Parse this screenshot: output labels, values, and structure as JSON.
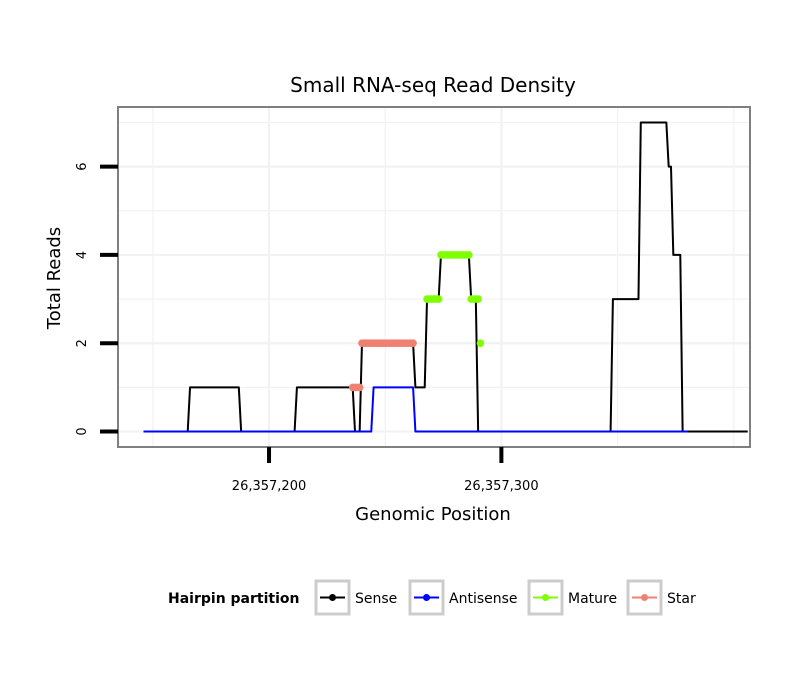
{
  "chart_data": {
    "type": "line",
    "title": "Small RNA-seq Read Density",
    "xlabel": "Genomic Position",
    "ylabel": "Total Reads",
    "xlim": [
      26357135,
      26357407
    ],
    "ylim": [
      -0.35,
      7.35
    ],
    "x_ticks": [
      {
        "value": 26357200,
        "label": "26,357,200"
      },
      {
        "value": 26357300,
        "label": "26,357,300"
      }
    ],
    "y_ticks": [
      {
        "value": 0,
        "label": "0"
      },
      {
        "value": 2,
        "label": "2"
      },
      {
        "value": 4,
        "label": "4"
      },
      {
        "value": 6,
        "label": "6"
      }
    ],
    "grid": true,
    "legend": {
      "title": "Hairpin partition",
      "position": "bottom",
      "entries": [
        {
          "name": "Sense",
          "color": "#000000"
        },
        {
          "name": "Antisense",
          "color": "#0000FF"
        },
        {
          "name": "Mature",
          "color": "#7FFF00"
        },
        {
          "name": "Star",
          "color": "#F08070"
        }
      ]
    },
    "series": [
      {
        "name": "Sense",
        "color": "#000000",
        "x": [
          26357146,
          26357165,
          26357166,
          26357187,
          26357188,
          26357211,
          26357212,
          26357236,
          26357237,
          26357239,
          26357240,
          26357262,
          26357263,
          26357267,
          26357268,
          26357273,
          26357274,
          26357286,
          26357287,
          26357289,
          26357290,
          26357347,
          26357348,
          26357359,
          26357360,
          26357371,
          26357372,
          26357373,
          26357374,
          26357377,
          26357378,
          26357406
        ],
        "values": [
          0,
          0,
          1,
          1,
          0,
          0,
          1,
          1,
          0,
          0,
          2,
          2,
          1,
          1,
          3,
          3,
          4,
          4,
          3,
          3,
          0,
          0,
          3,
          3,
          7,
          7,
          6,
          6,
          4,
          4,
          0,
          0
        ]
      },
      {
        "name": "Antisense",
        "color": "#0000FF",
        "x": [
          26357146,
          26357244,
          26357245,
          26357262,
          26357263,
          26357380
        ],
        "values": [
          0,
          0,
          1,
          1,
          0,
          0
        ]
      },
      {
        "name": "Mature",
        "color": "#7FFF00",
        "x": [
          26357268,
          26357269,
          26357270,
          26357271,
          26357272,
          26357273,
          26357274,
          26357275,
          26357276,
          26357277,
          26357278,
          26357279,
          26357280,
          26357281,
          26357282,
          26357283,
          26357284,
          26357285,
          26357286,
          26357287,
          26357288,
          26357289,
          26357290,
          26357291
        ],
        "values": [
          3,
          3,
          3,
          3,
          3,
          3,
          4,
          4,
          4,
          4,
          4,
          4,
          4,
          4,
          4,
          4,
          4,
          4,
          4,
          3,
          3,
          3,
          3,
          2
        ]
      },
      {
        "name": "Star",
        "color": "#F08070",
        "x": [
          26357236,
          26357237,
          26357238,
          26357239,
          26357240,
          26357241,
          26357242,
          26357243,
          26357244,
          26357245,
          26357246,
          26357247,
          26357248,
          26357249,
          26357250,
          26357251,
          26357252,
          26357253,
          26357254,
          26357255,
          26357256,
          26357257,
          26357258,
          26357259,
          26357260,
          26357261,
          26357262
        ],
        "values": [
          1,
          1,
          1,
          1,
          2,
          2,
          2,
          2,
          2,
          2,
          2,
          2,
          2,
          2,
          2,
          2,
          2,
          2,
          2,
          2,
          2,
          2,
          2,
          2,
          2,
          2,
          2
        ]
      }
    ]
  }
}
